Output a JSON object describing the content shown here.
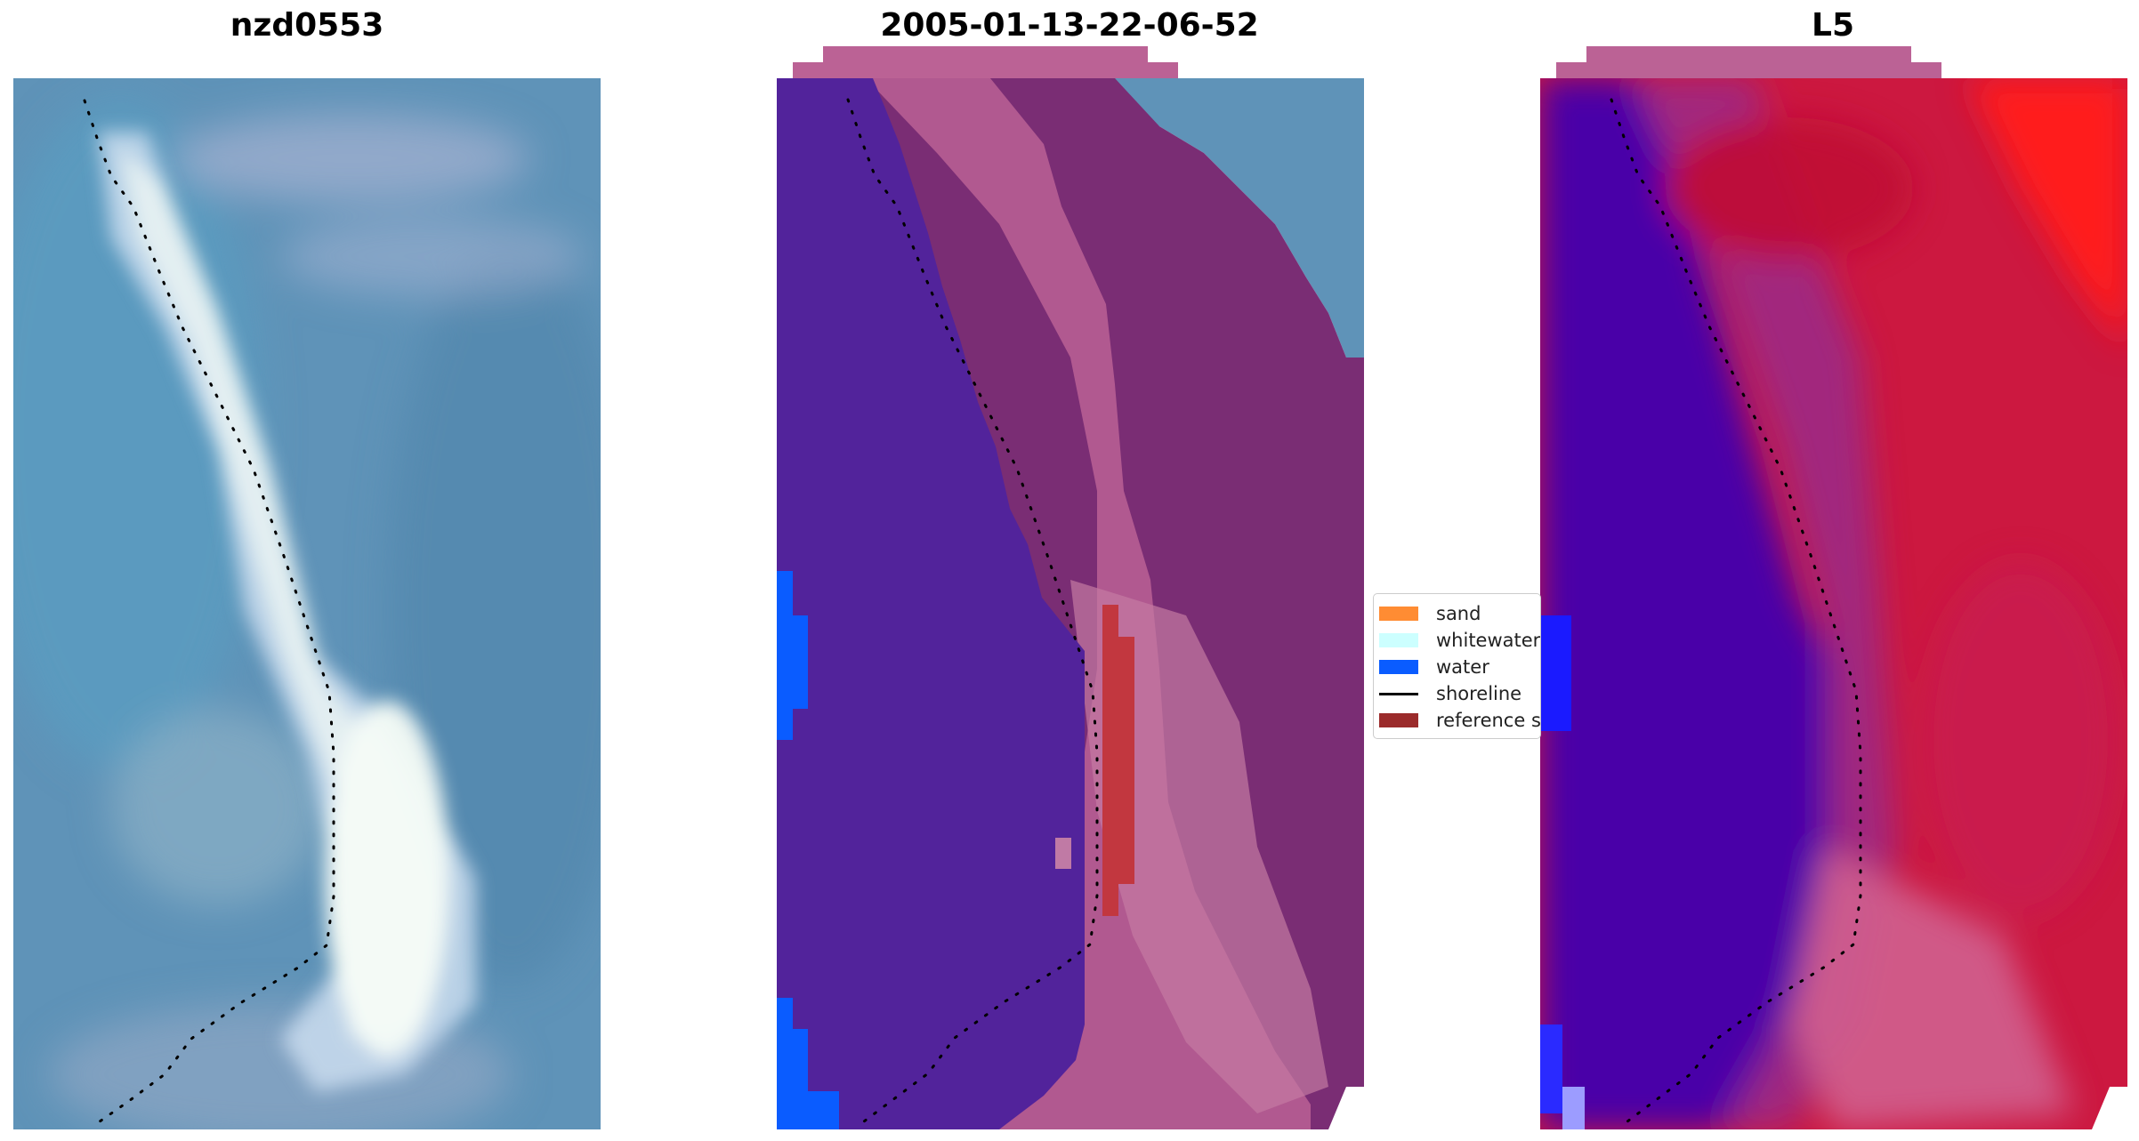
{
  "panels": [
    {
      "title": "nzd0553"
    },
    {
      "title": "2005-01-13-22-06-52"
    },
    {
      "title": "L5"
    }
  ],
  "legend": {
    "items": [
      {
        "label": "sand",
        "kind": "patch",
        "color": "#ff8c33"
      },
      {
        "label": "whitewater",
        "kind": "patch",
        "color": "#ccffff"
      },
      {
        "label": "water",
        "kind": "patch",
        "color": "#0a5cff"
      },
      {
        "label": "shoreline",
        "kind": "line",
        "color": "#000000"
      },
      {
        "label": "reference sl",
        "kind": "patch",
        "color": "#9b2b2b"
      }
    ]
  },
  "colors": {
    "sea": "#5f93b8",
    "water_class": "#52239b",
    "land_class": "#7a2d74",
    "land_light": "#c0628e",
    "index_low": "#4a00a8",
    "index_high": "#cc1840",
    "index_peak": "#ff1a1a",
    "sand_bright": "#eef8f4"
  }
}
